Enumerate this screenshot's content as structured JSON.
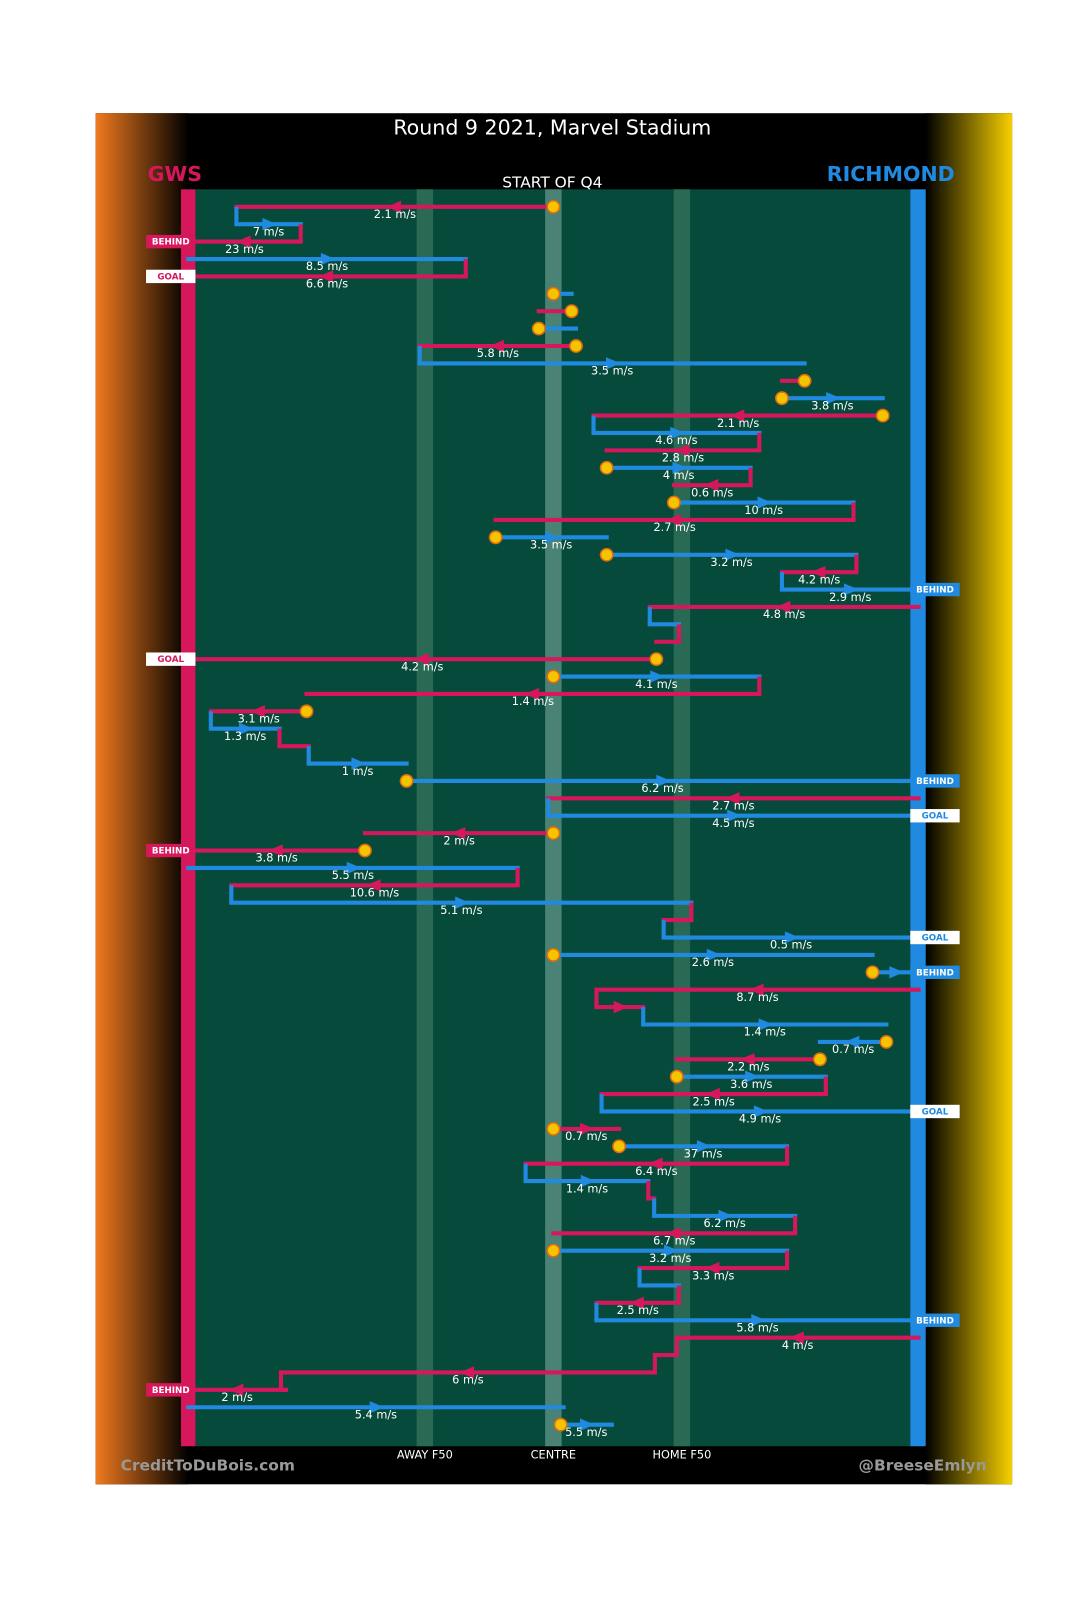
{
  "chart_data": {
    "type": "possession-chain",
    "title": "Round 9 2021, Marvel Stadium",
    "subtitle": "START OF Q4",
    "credit_left": "CreditToDuBois.com",
    "credit_right": "@BreeseEmlyn",
    "xlim": [
      0,
      100
    ],
    "teams": [
      {
        "name": "GWS",
        "color": "#d6175c"
      },
      {
        "name": "RICHMOND",
        "color": "#1f8ae0"
      }
    ],
    "markers": [
      {
        "label": "AWAY F50",
        "x": 32.4
      },
      {
        "label": "CENTRE",
        "x": 50
      },
      {
        "label": "HOME F50",
        "x": 67.6
      }
    ],
    "possessions": [
      {
        "team": 0,
        "from": 50.0,
        "to": 6.6,
        "label": "2.1 m/s",
        "stoppage": true
      },
      {
        "team": 1,
        "from": 6.6,
        "to": 15.4,
        "label": "7 m/s"
      },
      {
        "team": 0,
        "from": 15.4,
        "to": 0,
        "label": "23 m/s",
        "result": "BEHIND"
      },
      {
        "team": 1,
        "from": 0,
        "to": 38.0,
        "label": "8.5 m/s"
      },
      {
        "team": 0,
        "from": 38.0,
        "to": 0,
        "label": "6.6 m/s",
        "result": "GOAL"
      },
      {
        "team": 1,
        "from": 50.0,
        "to": 52.5,
        "stoppage": true
      },
      {
        "team": 0,
        "from": 52.5,
        "to": 48.0,
        "stoppage": true
      },
      {
        "team": 1,
        "from": 48.0,
        "to": 53.1,
        "stoppage": true
      },
      {
        "team": 0,
        "from": 53.1,
        "to": 31.7,
        "label": "5.8 m/s",
        "stoppage": true
      },
      {
        "team": 1,
        "from": 31.7,
        "to": 84.4,
        "label": "3.5 m/s"
      },
      {
        "team": 0,
        "from": 84.4,
        "to": 81.3,
        "stoppage": true
      },
      {
        "team": 1,
        "from": 81.3,
        "to": 95.1,
        "label": "3.8 m/s",
        "stoppage": true
      },
      {
        "team": 0,
        "from": 95.1,
        "to": 55.5,
        "label": "2.1 m/s",
        "stoppage": true
      },
      {
        "team": 1,
        "from": 55.5,
        "to": 78.2,
        "label": "4.6 m/s"
      },
      {
        "team": 0,
        "from": 78.2,
        "to": 57.3,
        "label": "2.8 m/s"
      },
      {
        "team": 1,
        "from": 57.3,
        "to": 77.0,
        "label": "4 m/s",
        "stoppage": true
      },
      {
        "team": 0,
        "from": 77.0,
        "to": 66.5,
        "label": "0.6 m/s"
      },
      {
        "team": 1,
        "from": 66.5,
        "to": 91.1,
        "label": "10 m/s",
        "stoppage": true
      },
      {
        "team": 0,
        "from": 91.1,
        "to": 42.1,
        "label": "2.7 m/s"
      },
      {
        "team": 1,
        "from": 42.1,
        "to": 57.3,
        "label": "3.5 m/s",
        "stoppage": true
      },
      {
        "team": 1,
        "from": 57.3,
        "to": 91.5,
        "label": "3.2 m/s",
        "stoppage": true
      },
      {
        "team": 0,
        "from": 91.5,
        "to": 81.3,
        "label": "4.2 m/s"
      },
      {
        "team": 1,
        "from": 81.3,
        "to": 100,
        "label": "2.9 m/s",
        "result": "BEHIND"
      },
      {
        "team": 0,
        "from": 100,
        "to": 63.2,
        "label": "4.8 m/s"
      },
      {
        "team": 1,
        "from": 63.2,
        "to": 67.2
      },
      {
        "team": 0,
        "from": 67.2,
        "to": 64.1
      },
      {
        "team": 0,
        "from": 64.1,
        "to": 0,
        "label": "4.2 m/s",
        "result": "GOAL",
        "stoppage": true
      },
      {
        "team": 1,
        "from": 50.0,
        "to": 78.2,
        "label": "4.1 m/s",
        "stoppage": true
      },
      {
        "team": 0,
        "from": 78.2,
        "to": 16.2,
        "label": "1.4 m/s"
      },
      {
        "team": 0,
        "from": 16.2,
        "to": 3.1,
        "label": "3.1 m/s",
        "stoppage": true
      },
      {
        "team": 1,
        "from": 3.1,
        "to": 12.5,
        "label": "1.3 m/s"
      },
      {
        "team": 0,
        "from": 12.5,
        "to": 16.5
      },
      {
        "team": 1,
        "from": 16.5,
        "to": 29.9,
        "label": "1 m/s"
      },
      {
        "team": 1,
        "from": 29.9,
        "to": 100,
        "label": "6.2 m/s",
        "result": "BEHIND",
        "stoppage": true
      },
      {
        "team": 0,
        "from": 100,
        "to": 49.3,
        "label": "2.7 m/s"
      },
      {
        "team": 1,
        "from": 49.3,
        "to": 100,
        "label": "4.5 m/s",
        "result": "GOAL"
      },
      {
        "team": 0,
        "from": 50.0,
        "to": 24.2,
        "label": "2 m/s",
        "stoppage": true
      },
      {
        "team": 0,
        "from": 24.2,
        "to": 0,
        "label": "3.8 m/s",
        "result": "BEHIND",
        "stoppage": true
      },
      {
        "team": 1,
        "from": 0,
        "to": 45.1,
        "label": "5.5 m/s"
      },
      {
        "team": 0,
        "from": 45.1,
        "to": 5.9,
        "label": "10.6 m/s"
      },
      {
        "team": 1,
        "from": 5.9,
        "to": 68.9,
        "label": "5.1 m/s"
      },
      {
        "team": 0,
        "from": 68.9,
        "to": 65.1
      },
      {
        "team": 1,
        "from": 65.1,
        "to": 100,
        "label": "0.5 m/s",
        "result": "GOAL"
      },
      {
        "team": 1,
        "from": 50.0,
        "to": 93.7,
        "label": "2.6 m/s",
        "stoppage": true
      },
      {
        "team": 1,
        "from": 93.7,
        "to": 100,
        "result": "BEHIND",
        "stoppage": true
      },
      {
        "team": 0,
        "from": 100,
        "to": 55.9,
        "label": "8.7 m/s"
      },
      {
        "team": 0,
        "from": 55.9,
        "to": 62.3
      },
      {
        "team": 1,
        "from": 62.3,
        "to": 95.6,
        "label": "1.4 m/s"
      },
      {
        "team": 1,
        "from": 95.6,
        "to": 86.5,
        "label": "0.7 m/s",
        "stoppage": true
      },
      {
        "team": 0,
        "from": 86.5,
        "to": 66.9,
        "label": "2.2 m/s",
        "stoppage": true
      },
      {
        "team": 1,
        "from": 66.9,
        "to": 87.3,
        "label": "3.6 m/s",
        "stoppage": true
      },
      {
        "team": 0,
        "from": 87.3,
        "to": 56.6,
        "label": "2.5 m/s"
      },
      {
        "team": 1,
        "from": 56.6,
        "to": 100,
        "label": "4.9 m/s",
        "result": "GOAL"
      },
      {
        "team": 0,
        "from": 50.0,
        "to": 59.0,
        "label": "0.7 m/s",
        "stoppage": true
      },
      {
        "team": 1,
        "from": 59.0,
        "to": 82.0,
        "label": "37 m/s",
        "stoppage": true
      },
      {
        "team": 0,
        "from": 82.0,
        "to": 46.2,
        "label": "6.4 m/s"
      },
      {
        "team": 1,
        "from": 46.2,
        "to": 63.0,
        "label": "1.4 m/s"
      },
      {
        "team": 0,
        "from": 63.0,
        "to": 63.8
      },
      {
        "team": 1,
        "from": 63.8,
        "to": 83.1,
        "label": "6.2 m/s"
      },
      {
        "team": 0,
        "from": 83.1,
        "to": 50.0,
        "label": "6.7 m/s"
      },
      {
        "team": 1,
        "from": 50.0,
        "to": 82.0,
        "label": "3.2 m/s",
        "stoppage": true
      },
      {
        "team": 0,
        "from": 82.0,
        "to": 61.8,
        "label": "3.3 m/s"
      },
      {
        "team": 1,
        "from": 61.8,
        "to": 67.2
      },
      {
        "team": 0,
        "from": 67.2,
        "to": 55.9,
        "label": "2.5 m/s"
      },
      {
        "team": 1,
        "from": 55.9,
        "to": 100,
        "label": "5.8 m/s",
        "result": "BEHIND"
      },
      {
        "team": 0,
        "from": 100,
        "to": 66.9,
        "label": "4 m/s"
      },
      {
        "team": 0,
        "from": 66.9,
        "to": 63.9
      },
      {
        "team": 0,
        "from": 63.9,
        "to": 12.7,
        "label": "6 m/s"
      },
      {
        "team": 0,
        "from": 13.4,
        "to": 0,
        "label": "2 m/s",
        "result": "BEHIND"
      },
      {
        "team": 1,
        "from": 0,
        "to": 51.4,
        "label": "5.4 m/s"
      },
      {
        "team": 1,
        "from": 51.0,
        "to": 58.0,
        "label": "5.5 m/s",
        "stoppage": true
      }
    ]
  }
}
